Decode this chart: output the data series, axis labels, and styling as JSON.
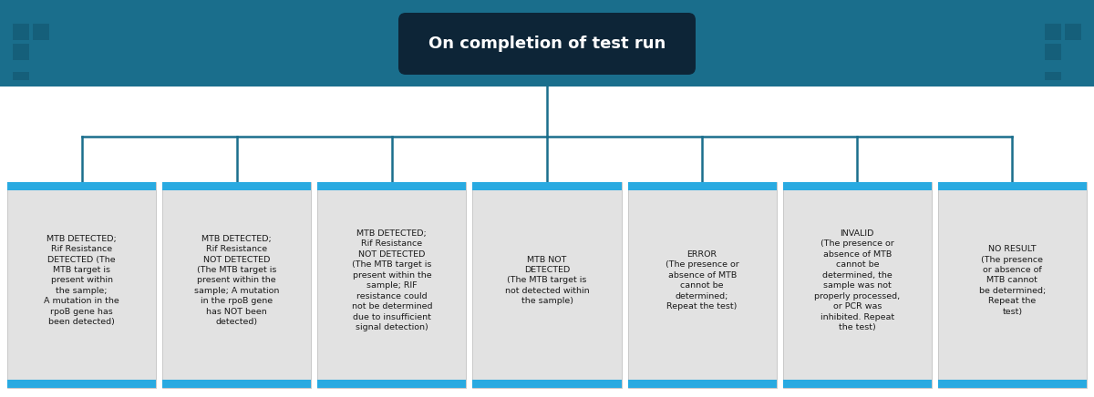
{
  "title": "On completion of test run",
  "header_bg": "#1a6e8c",
  "title_box_bg": "#0d2537",
  "title_text_color": "#ffffff",
  "connector_color": "#1a6e8c",
  "card_bg": "#e2e2e2",
  "card_stripe_color": "#29aae1",
  "card_text_color": "#1a1a1a",
  "card_texts": [
    "MTB DETECTED;\nRif Resistance\nDETECTED (The\nMTB target is\npresent within\nthe sample;\nA mutation in the\nrpoB gene has\nbeen detected)",
    "MTB DETECTED;\nRif Resistance\nNOT DETECTED\n(The MTB target is\npresent within the\nsample; A mutation\nin the rpoB gene\nhas NOT been\ndetected)",
    "MTB DETECTED;\nRif Resistance\nNOT DETECTED\n(The MTB target is\npresent within the\nsample; RIF\nresistance could\nnot be determined\ndue to insufficient\nsignal detection)",
    "MTB NOT\nDETECTED\n(The MTB target is\nnot detected within\nthe sample)",
    "ERROR\n(The presence or\nabsence of MTB\ncannot be\ndetermined;\nRepeat the test)",
    "INVALID\n(The presence or\nabsence of MTB\ncannot be\ndetermined, the\nsample was not\nproperly processed,\nor PCR was\ninhibited. Repeat\nthe test)",
    "NO RESULT\n(The presence\nor absence of\nMTB cannot\nbe determined;\nRepeat the\ntest)"
  ],
  "n_cards": 7,
  "fig_width": 12.0,
  "fig_height": 4.36,
  "icon_color": "#155f7a",
  "icon_color2": "#1a6e8c"
}
